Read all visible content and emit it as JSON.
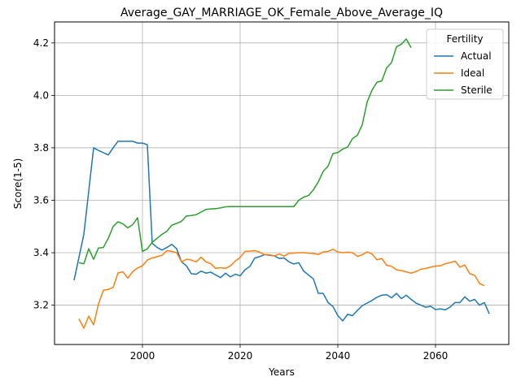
{
  "chart_data": {
    "type": "line",
    "title": "Average_GAY_MARRIAGE_OK_Female_Above_Average_IQ",
    "xlabel": "Years",
    "ylabel": "Score(1-5)",
    "xlim": [
      1982,
      2075
    ],
    "ylim": [
      3.05,
      4.28
    ],
    "xticks": [
      2000,
      2020,
      2040,
      2060
    ],
    "yticks": [
      3.2,
      3.4,
      3.6,
      3.8,
      4.0,
      4.2
    ],
    "grid": true,
    "legend": {
      "title": "Fertility",
      "placement": "top-right"
    },
    "series": [
      {
        "name": "Actual",
        "color": "#1f77b4",
        "points": [
          [
            1986,
            3.295
          ],
          [
            1988,
            3.47
          ],
          [
            1990,
            3.8
          ],
          [
            1991,
            3.79
          ],
          [
            1993,
            3.773
          ],
          [
            1994,
            3.8
          ],
          [
            1995,
            3.825
          ],
          [
            1996,
            3.825
          ],
          [
            1997,
            3.825
          ],
          [
            1998,
            3.825
          ],
          [
            1999,
            3.818
          ],
          [
            2000,
            3.818
          ],
          [
            2001,
            3.812
          ],
          [
            2002,
            3.436
          ],
          [
            2003,
            3.42
          ],
          [
            2004,
            3.41
          ],
          [
            2005,
            3.42
          ],
          [
            2006,
            3.432
          ],
          [
            2007,
            3.415
          ],
          [
            2008,
            3.365
          ],
          [
            2009,
            3.35
          ],
          [
            2010,
            3.32
          ],
          [
            2011,
            3.318
          ],
          [
            2012,
            3.33
          ],
          [
            2013,
            3.322
          ],
          [
            2014,
            3.326
          ],
          [
            2015,
            3.315
          ],
          [
            2016,
            3.305
          ],
          [
            2017,
            3.322
          ],
          [
            2018,
            3.308
          ],
          [
            2019,
            3.318
          ],
          [
            2020,
            3.312
          ],
          [
            2021,
            3.335
          ],
          [
            2022,
            3.348
          ],
          [
            2023,
            3.38
          ],
          [
            2024,
            3.385
          ],
          [
            2025,
            3.393
          ],
          [
            2026,
            3.39
          ],
          [
            2027,
            3.388
          ],
          [
            2028,
            3.378
          ],
          [
            2029,
            3.38
          ],
          [
            2030,
            3.365
          ],
          [
            2031,
            3.357
          ],
          [
            2032,
            3.362
          ],
          [
            2033,
            3.33
          ],
          [
            2034,
            3.315
          ],
          [
            2035,
            3.3
          ],
          [
            2036,
            3.245
          ],
          [
            2037,
            3.245
          ],
          [
            2038,
            3.21
          ],
          [
            2039,
            3.195
          ],
          [
            2040,
            3.16
          ],
          [
            2041,
            3.14
          ],
          [
            2042,
            3.165
          ],
          [
            2043,
            3.16
          ],
          [
            2044,
            3.18
          ],
          [
            2045,
            3.198
          ],
          [
            2046,
            3.208
          ],
          [
            2047,
            3.218
          ],
          [
            2048,
            3.23
          ],
          [
            2049,
            3.238
          ],
          [
            2050,
            3.24
          ],
          [
            2051,
            3.228
          ],
          [
            2052,
            3.245
          ],
          [
            2053,
            3.225
          ],
          [
            2054,
            3.238
          ],
          [
            2055,
            3.222
          ],
          [
            2056,
            3.208
          ],
          [
            2057,
            3.2
          ],
          [
            2058,
            3.192
          ],
          [
            2059,
            3.196
          ],
          [
            2060,
            3.183
          ],
          [
            2061,
            3.186
          ],
          [
            2062,
            3.182
          ],
          [
            2063,
            3.193
          ],
          [
            2064,
            3.21
          ],
          [
            2065,
            3.21
          ],
          [
            2066,
            3.232
          ],
          [
            2067,
            3.215
          ],
          [
            2068,
            3.222
          ],
          [
            2069,
            3.2
          ],
          [
            2070,
            3.21
          ],
          [
            2071,
            3.167
          ]
        ]
      },
      {
        "name": "Ideal",
        "color": "#ff7f0e",
        "points": [
          [
            1987,
            3.148
          ],
          [
            1988,
            3.112
          ],
          [
            1989,
            3.158
          ],
          [
            1990,
            3.125
          ],
          [
            1991,
            3.205
          ],
          [
            1992,
            3.257
          ],
          [
            1993,
            3.26
          ],
          [
            1994,
            3.268
          ],
          [
            1995,
            3.323
          ],
          [
            1996,
            3.327
          ],
          [
            1997,
            3.303
          ],
          [
            1998,
            3.328
          ],
          [
            1999,
            3.342
          ],
          [
            2000,
            3.35
          ],
          [
            2001,
            3.372
          ],
          [
            2002,
            3.38
          ],
          [
            2003,
            3.385
          ],
          [
            2004,
            3.39
          ],
          [
            2005,
            3.408
          ],
          [
            2006,
            3.405
          ],
          [
            2007,
            3.4
          ],
          [
            2008,
            3.365
          ],
          [
            2009,
            3.375
          ],
          [
            2010,
            3.372
          ],
          [
            2011,
            3.365
          ],
          [
            2012,
            3.383
          ],
          [
            2013,
            3.365
          ],
          [
            2014,
            3.358
          ],
          [
            2015,
            3.34
          ],
          [
            2016,
            3.343
          ],
          [
            2017,
            3.34
          ],
          [
            2018,
            3.35
          ],
          [
            2019,
            3.368
          ],
          [
            2020,
            3.382
          ],
          [
            2021,
            3.405
          ],
          [
            2022,
            3.406
          ],
          [
            2023,
            3.408
          ],
          [
            2024,
            3.402
          ],
          [
            2025,
            3.393
          ],
          [
            2026,
            3.392
          ],
          [
            2027,
            3.388
          ],
          [
            2028,
            3.395
          ],
          [
            2029,
            3.387
          ],
          [
            2030,
            3.398
          ],
          [
            2031,
            3.398
          ],
          [
            2032,
            3.4
          ],
          [
            2033,
            3.4
          ],
          [
            2034,
            3.398
          ],
          [
            2035,
            3.397
          ],
          [
            2036,
            3.393
          ],
          [
            2037,
            3.403
          ],
          [
            2038,
            3.405
          ],
          [
            2039,
            3.413
          ],
          [
            2040,
            3.403
          ],
          [
            2041,
            3.4
          ],
          [
            2042,
            3.402
          ],
          [
            2043,
            3.4
          ],
          [
            2044,
            3.386
          ],
          [
            2045,
            3.392
          ],
          [
            2046,
            3.403
          ],
          [
            2047,
            3.395
          ],
          [
            2048,
            3.373
          ],
          [
            2049,
            3.378
          ],
          [
            2050,
            3.352
          ],
          [
            2051,
            3.348
          ],
          [
            2052,
            3.335
          ],
          [
            2053,
            3.332
          ],
          [
            2054,
            3.327
          ],
          [
            2055,
            3.322
          ],
          [
            2056,
            3.328
          ],
          [
            2057,
            3.337
          ],
          [
            2058,
            3.34
          ],
          [
            2059,
            3.345
          ],
          [
            2060,
            3.349
          ],
          [
            2061,
            3.35
          ],
          [
            2062,
            3.358
          ],
          [
            2063,
            3.362
          ],
          [
            2064,
            3.368
          ],
          [
            2065,
            3.345
          ],
          [
            2066,
            3.353
          ],
          [
            2067,
            3.32
          ],
          [
            2068,
            3.314
          ],
          [
            2069,
            3.283
          ],
          [
            2070,
            3.274
          ]
        ]
      },
      {
        "name": "Sterile",
        "color": "#2ca02c",
        "points": [
          [
            1987,
            3.362
          ],
          [
            1988,
            3.358
          ],
          [
            1989,
            3.415
          ],
          [
            1990,
            3.375
          ],
          [
            1991,
            3.418
          ],
          [
            1992,
            3.42
          ],
          [
            1993,
            3.455
          ],
          [
            1994,
            3.5
          ],
          [
            1995,
            3.518
          ],
          [
            1996,
            3.51
          ],
          [
            1997,
            3.495
          ],
          [
            1998,
            3.507
          ],
          [
            1999,
            3.533
          ],
          [
            2000,
            3.405
          ],
          [
            2001,
            3.415
          ],
          [
            2002,
            3.44
          ],
          [
            2003,
            3.455
          ],
          [
            2004,
            3.47
          ],
          [
            2005,
            3.482
          ],
          [
            2006,
            3.505
          ],
          [
            2007,
            3.512
          ],
          [
            2008,
            3.52
          ],
          [
            2009,
            3.54
          ],
          [
            2010,
            3.542
          ],
          [
            2011,
            3.545
          ],
          [
            2012,
            3.555
          ],
          [
            2013,
            3.565
          ],
          [
            2014,
            3.567
          ],
          [
            2015,
            3.568
          ],
          [
            2016,
            3.571
          ],
          [
            2017,
            3.575
          ],
          [
            2018,
            3.576
          ],
          [
            2019,
            3.576
          ],
          [
            2020,
            3.576
          ],
          [
            2021,
            3.576
          ],
          [
            2022,
            3.576
          ],
          [
            2023,
            3.576
          ],
          [
            2024,
            3.576
          ],
          [
            2025,
            3.576
          ],
          [
            2026,
            3.576
          ],
          [
            2027,
            3.576
          ],
          [
            2028,
            3.576
          ],
          [
            2029,
            3.576
          ],
          [
            2030,
            3.576
          ],
          [
            2031,
            3.576
          ],
          [
            2032,
            3.6
          ],
          [
            2033,
            3.612
          ],
          [
            2034,
            3.618
          ],
          [
            2035,
            3.64
          ],
          [
            2036,
            3.67
          ],
          [
            2037,
            3.71
          ],
          [
            2038,
            3.73
          ],
          [
            2039,
            3.778
          ],
          [
            2040,
            3.782
          ],
          [
            2041,
            3.795
          ],
          [
            2042,
            3.803
          ],
          [
            2043,
            3.835
          ],
          [
            2044,
            3.848
          ],
          [
            2045,
            3.888
          ],
          [
            2046,
            3.975
          ],
          [
            2047,
            4.02
          ],
          [
            2048,
            4.05
          ],
          [
            2049,
            4.055
          ],
          [
            2050,
            4.105
          ],
          [
            2051,
            4.125
          ],
          [
            2052,
            4.185
          ],
          [
            2053,
            4.195
          ],
          [
            2054,
            4.215
          ],
          [
            2055,
            4.182
          ]
        ]
      }
    ]
  }
}
